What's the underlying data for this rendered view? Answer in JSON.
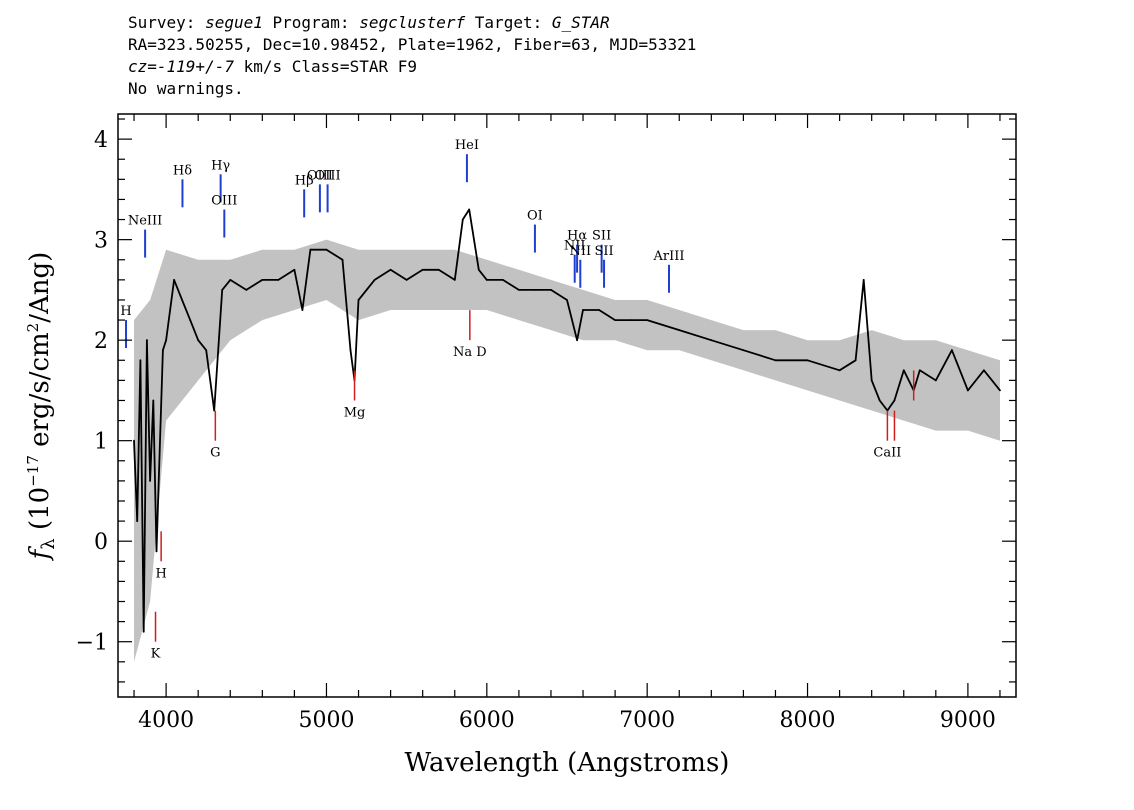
{
  "header": {
    "line1": {
      "survey_label": "Survey: ",
      "survey": "segue1",
      "program_label": " Program: ",
      "program": "segclusterf",
      "target_label": " Target: ",
      "target": "G_STAR"
    },
    "line2": "RA=323.50255, Dec=10.98452, Plate=1962, Fiber=63, MJD=53321",
    "line3": {
      "cz": "cz=-119+/-7",
      "rest": " km/s Class=STAR F9"
    },
    "line4": "No warnings."
  },
  "chart_data": {
    "type": "line",
    "xlabel": "Wavelength (Angstroms)",
    "ylabel": "f_λ (10^-17 erg/s/cm^2/Ang)",
    "ylabel_parts": {
      "f": "f",
      "sub": "λ",
      "open": " (10",
      "exp1": "−17",
      "mid": " erg/s/cm",
      "exp2": "2",
      "close": "/Ang)"
    },
    "xlim": [
      3700,
      9300
    ],
    "ylim": [
      -1.55,
      4.25
    ],
    "xticks": [
      4000,
      5000,
      6000,
      7000,
      8000,
      9000
    ],
    "yticks": [
      -1,
      0,
      1,
      2,
      3,
      4
    ],
    "ytick_labels": [
      "−1",
      "0",
      "1",
      "2",
      "3",
      "4"
    ],
    "grid": false,
    "series": [
      {
        "role": "flux",
        "color": "#000000",
        "x": [
          3800,
          3820,
          3840,
          3860,
          3880,
          3900,
          3920,
          3940,
          3960,
          3980,
          4000,
          4050,
          4100,
          4150,
          4200,
          4250,
          4300,
          4350,
          4400,
          4500,
          4600,
          4700,
          4800,
          4850,
          4900,
          5000,
          5100,
          5150,
          5175,
          5200,
          5300,
          5400,
          5500,
          5600,
          5700,
          5800,
          5850,
          5890,
          5950,
          6000,
          6100,
          6200,
          6300,
          6400,
          6500,
          6563,
          6600,
          6700,
          6800,
          6900,
          7000,
          7200,
          7400,
          7600,
          7800,
          8000,
          8200,
          8300,
          8350,
          8400,
          8450,
          8498,
          8542,
          8600,
          8662,
          8700,
          8800,
          8900,
          9000,
          9100,
          9200
        ],
        "y": [
          1.0,
          0.2,
          1.8,
          -0.9,
          2.0,
          0.6,
          1.4,
          -0.1,
          0.9,
          1.9,
          2.0,
          2.6,
          2.4,
          2.2,
          2.0,
          1.9,
          1.3,
          2.5,
          2.6,
          2.5,
          2.6,
          2.6,
          2.7,
          2.3,
          2.9,
          2.9,
          2.8,
          1.9,
          1.6,
          2.4,
          2.6,
          2.7,
          2.6,
          2.7,
          2.7,
          2.6,
          3.2,
          3.3,
          2.7,
          2.6,
          2.6,
          2.5,
          2.5,
          2.5,
          2.4,
          2.0,
          2.3,
          2.3,
          2.2,
          2.2,
          2.2,
          2.1,
          2.0,
          1.9,
          1.8,
          1.8,
          1.7,
          1.8,
          2.6,
          1.6,
          1.4,
          1.3,
          1.4,
          1.7,
          1.5,
          1.7,
          1.6,
          1.9,
          1.5,
          1.7,
          1.5
        ]
      },
      {
        "role": "noise_envelope",
        "color": "#bbbbbb",
        "x": [
          3800,
          3900,
          4000,
          4200,
          4400,
          4600,
          4800,
          5000,
          5200,
          5400,
          5600,
          5800,
          6000,
          6200,
          6400,
          6600,
          6800,
          7000,
          7200,
          7400,
          7600,
          7800,
          8000,
          8200,
          8400,
          8600,
          8800,
          9000,
          9200
        ],
        "y_upper": [
          2.2,
          2.4,
          2.9,
          2.8,
          2.8,
          2.9,
          2.9,
          3.0,
          2.9,
          2.9,
          2.9,
          2.9,
          2.8,
          2.7,
          2.6,
          2.5,
          2.4,
          2.4,
          2.3,
          2.2,
          2.1,
          2.1,
          2.0,
          2.0,
          2.1,
          2.0,
          2.0,
          1.9,
          1.8
        ],
        "y_lower": [
          -1.2,
          -0.6,
          1.2,
          1.6,
          2.0,
          2.2,
          2.3,
          2.4,
          2.2,
          2.3,
          2.3,
          2.3,
          2.3,
          2.2,
          2.1,
          2.0,
          2.0,
          1.9,
          1.9,
          1.8,
          1.7,
          1.6,
          1.5,
          1.4,
          1.3,
          1.2,
          1.1,
          1.1,
          1.0
        ]
      }
    ],
    "emission_lines": [
      {
        "label": "H",
        "x": 3750,
        "y": 2.2
      },
      {
        "label": "NeIII",
        "x": 3869,
        "y": 3.1
      },
      {
        "label": "Hδ",
        "x": 4102,
        "y": 3.6
      },
      {
        "label": "Hγ",
        "x": 4340,
        "y": 3.65
      },
      {
        "label": "OIII",
        "x": 4363,
        "y": 3.3
      },
      {
        "label": "Hβ",
        "x": 4861,
        "y": 3.5
      },
      {
        "label": "OIII",
        "x": 4959,
        "y": 3.55
      },
      {
        "label": "OIII",
        "x": 5007,
        "y": 3.55
      },
      {
        "label": "HeI",
        "x": 5876,
        "y": 3.85
      },
      {
        "label": "OI",
        "x": 6300,
        "y": 3.15
      },
      {
        "label": "NII",
        "x": 6548,
        "y": 2.85
      },
      {
        "label": "Hα",
        "x": 6563,
        "y": 2.95
      },
      {
        "label": "NII",
        "x": 6583,
        "y": 2.8
      },
      {
        "label": "SII",
        "x": 6716,
        "y": 2.95
      },
      {
        "label": "SII",
        "x": 6731,
        "y": 2.8
      },
      {
        "label": "ArIII",
        "x": 7136,
        "y": 2.75
      }
    ],
    "absorption_lines": [
      {
        "label": "K",
        "x": 3934,
        "y": -1.0
      },
      {
        "label": "H",
        "x": 3969,
        "y": -0.2
      },
      {
        "label": "G",
        "x": 4307,
        "y": 1.0
      },
      {
        "label": "Mg",
        "x": 5175,
        "y": 1.4
      },
      {
        "label": "Na D",
        "x": 5894,
        "y": 2.0
      },
      {
        "label": "CaII",
        "x": 8498,
        "y": 1.0
      },
      {
        "label": "",
        "x": 8542,
        "y": 1.0
      },
      {
        "label": "",
        "x": 8662,
        "y": 1.4
      }
    ]
  }
}
